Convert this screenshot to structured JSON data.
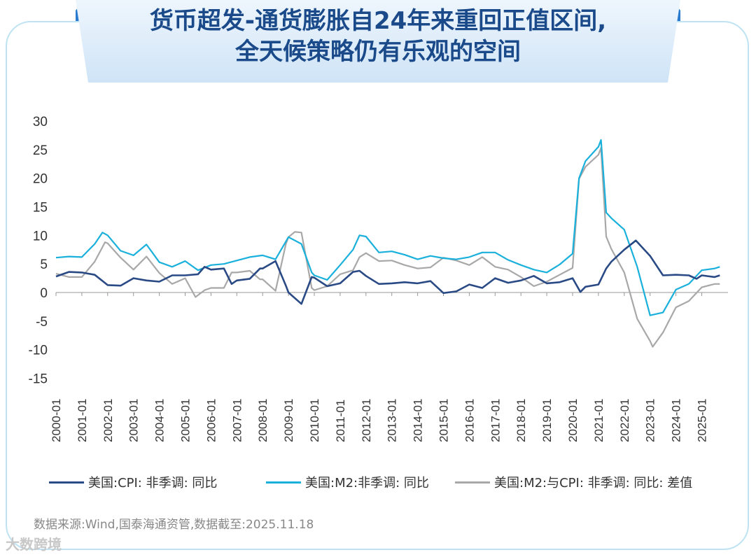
{
  "title_lines": [
    "货币超发-通货膨胀自24年来重回正值区间,",
    "全天候策略仍有乐观的空间"
  ],
  "source": "数据来源:Wind,国泰海通资管,数据截至:2025.11.18",
  "watermark": "大数跨境",
  "colors": {
    "cpi": "#2a4a86",
    "m2": "#1ab0dc",
    "diff": "#a8a8a8",
    "title": "#1a4a8a",
    "banner": "#dcecfa"
  },
  "chart_data": {
    "type": "line",
    "x_ticks": [
      "2000-01",
      "2001-01",
      "2002-01",
      "2003-01",
      "2004-01",
      "2005-01",
      "2006-01",
      "2007-01",
      "2008-01",
      "2009-01",
      "2010-01",
      "2011-01",
      "2012-01",
      "2013-01",
      "2014-01",
      "2015-01",
      "2016-01",
      "2017-01",
      "2018-01",
      "2019-01",
      "2020-01",
      "2021-01",
      "2022-01",
      "2023-01",
      "2024-01",
      "2025-01"
    ],
    "y_ticks": [
      "30",
      "25",
      "20",
      "15",
      "10",
      "5",
      "0",
      "-5",
      "-10",
      "-15"
    ],
    "ylim": [
      -15,
      30
    ],
    "xlim": [
      2000.0,
      2025.8
    ],
    "legend_position": "bottom",
    "series": [
      {
        "name": "美国:CPI: 非季调: 同比",
        "color": "#2a4a86",
        "points": [
          [
            2000.0,
            2.8
          ],
          [
            2000.5,
            3.6
          ],
          [
            2001.0,
            3.5
          ],
          [
            2001.5,
            3.1
          ],
          [
            2002.0,
            1.3
          ],
          [
            2002.5,
            1.2
          ],
          [
            2003.0,
            2.5
          ],
          [
            2003.5,
            2.1
          ],
          [
            2004.0,
            1.9
          ],
          [
            2004.5,
            3.0
          ],
          [
            2005.0,
            3.0
          ],
          [
            2005.5,
            3.2
          ],
          [
            2005.75,
            4.5
          ],
          [
            2006.0,
            4.0
          ],
          [
            2006.5,
            4.2
          ],
          [
            2006.8,
            1.5
          ],
          [
            2007.0,
            2.1
          ],
          [
            2007.5,
            2.4
          ],
          [
            2007.9,
            4.2
          ],
          [
            2008.0,
            4.2
          ],
          [
            2008.5,
            5.5
          ],
          [
            2008.9,
            1.2
          ],
          [
            2009.0,
            0.0
          ],
          [
            2009.5,
            -2.0
          ],
          [
            2009.9,
            2.7
          ],
          [
            2010.0,
            2.6
          ],
          [
            2010.5,
            1.1
          ],
          [
            2011.0,
            1.6
          ],
          [
            2011.5,
            3.6
          ],
          [
            2011.75,
            3.8
          ],
          [
            2012.0,
            2.9
          ],
          [
            2012.5,
            1.5
          ],
          [
            2013.0,
            1.6
          ],
          [
            2013.5,
            1.8
          ],
          [
            2014.0,
            1.6
          ],
          [
            2014.5,
            2.0
          ],
          [
            2015.0,
            -0.1
          ],
          [
            2015.5,
            0.2
          ],
          [
            2016.0,
            1.4
          ],
          [
            2016.5,
            0.8
          ],
          [
            2017.0,
            2.5
          ],
          [
            2017.5,
            1.7
          ],
          [
            2018.0,
            2.1
          ],
          [
            2018.5,
            2.9
          ],
          [
            2019.0,
            1.6
          ],
          [
            2019.5,
            1.8
          ],
          [
            2020.0,
            2.5
          ],
          [
            2020.3,
            0.1
          ],
          [
            2020.5,
            1.0
          ],
          [
            2021.0,
            1.4
          ],
          [
            2021.3,
            4.2
          ],
          [
            2021.5,
            5.4
          ],
          [
            2022.0,
            7.5
          ],
          [
            2022.45,
            9.1
          ],
          [
            2023.0,
            6.4
          ],
          [
            2023.5,
            3.0
          ],
          [
            2024.0,
            3.1
          ],
          [
            2024.5,
            3.0
          ],
          [
            2024.8,
            2.4
          ],
          [
            2025.0,
            3.0
          ],
          [
            2025.5,
            2.7
          ],
          [
            2025.7,
            3.0
          ]
        ]
      },
      {
        "name": "美国:M2:非季调: 同比",
        "color": "#1ab0dc",
        "points": [
          [
            2000.0,
            6.1
          ],
          [
            2000.5,
            6.3
          ],
          [
            2001.0,
            6.2
          ],
          [
            2001.5,
            8.5
          ],
          [
            2001.8,
            10.5
          ],
          [
            2002.0,
            10.0
          ],
          [
            2002.5,
            7.3
          ],
          [
            2003.0,
            6.5
          ],
          [
            2003.5,
            8.4
          ],
          [
            2004.0,
            5.3
          ],
          [
            2004.5,
            4.5
          ],
          [
            2005.0,
            5.5
          ],
          [
            2005.5,
            3.9
          ],
          [
            2006.0,
            4.8
          ],
          [
            2006.5,
            5.0
          ],
          [
            2007.0,
            5.6
          ],
          [
            2007.5,
            6.2
          ],
          [
            2008.0,
            6.5
          ],
          [
            2008.5,
            5.8
          ],
          [
            2009.0,
            9.7
          ],
          [
            2009.5,
            8.5
          ],
          [
            2009.9,
            3.5
          ],
          [
            2010.0,
            3.0
          ],
          [
            2010.5,
            2.2
          ],
          [
            2011.0,
            4.8
          ],
          [
            2011.5,
            7.5
          ],
          [
            2011.75,
            10.0
          ],
          [
            2012.0,
            9.8
          ],
          [
            2012.5,
            7.0
          ],
          [
            2013.0,
            7.2
          ],
          [
            2013.5,
            6.6
          ],
          [
            2014.0,
            5.8
          ],
          [
            2014.5,
            6.4
          ],
          [
            2015.0,
            6.0
          ],
          [
            2015.5,
            5.8
          ],
          [
            2016.0,
            6.2
          ],
          [
            2016.5,
            7.0
          ],
          [
            2017.0,
            7.0
          ],
          [
            2017.5,
            5.7
          ],
          [
            2018.0,
            4.8
          ],
          [
            2018.5,
            4.0
          ],
          [
            2019.0,
            3.5
          ],
          [
            2019.5,
            4.9
          ],
          [
            2020.0,
            6.8
          ],
          [
            2020.25,
            20.0
          ],
          [
            2020.5,
            23.0
          ],
          [
            2021.0,
            25.5
          ],
          [
            2021.1,
            26.7
          ],
          [
            2021.3,
            14.0
          ],
          [
            2021.5,
            13.0
          ],
          [
            2022.0,
            11.0
          ],
          [
            2022.5,
            4.5
          ],
          [
            2023.0,
            -4.0
          ],
          [
            2023.5,
            -3.5
          ],
          [
            2024.0,
            0.5
          ],
          [
            2024.5,
            1.5
          ],
          [
            2025.0,
            3.9
          ],
          [
            2025.5,
            4.2
          ],
          [
            2025.7,
            4.5
          ]
        ]
      },
      {
        "name": "美国:M2:与CPI: 非季调: 同比: 差值",
        "color": "#a8a8a8",
        "points": [
          [
            2000.0,
            3.3
          ],
          [
            2000.5,
            2.7
          ],
          [
            2001.0,
            2.7
          ],
          [
            2001.5,
            5.4
          ],
          [
            2001.9,
            8.8
          ],
          [
            2002.0,
            8.6
          ],
          [
            2002.5,
            6.1
          ],
          [
            2003.0,
            4.0
          ],
          [
            2003.5,
            6.3
          ],
          [
            2004.0,
            3.4
          ],
          [
            2004.5,
            1.5
          ],
          [
            2005.0,
            2.5
          ],
          [
            2005.4,
            -0.8
          ],
          [
            2005.75,
            0.4
          ],
          [
            2006.0,
            0.8
          ],
          [
            2006.5,
            0.8
          ],
          [
            2006.8,
            3.5
          ],
          [
            2007.0,
            3.5
          ],
          [
            2007.5,
            3.8
          ],
          [
            2007.9,
            2.3
          ],
          [
            2008.0,
            2.3
          ],
          [
            2008.5,
            0.3
          ],
          [
            2008.9,
            8.5
          ],
          [
            2009.0,
            9.7
          ],
          [
            2009.25,
            10.6
          ],
          [
            2009.5,
            10.5
          ],
          [
            2009.9,
            0.8
          ],
          [
            2010.0,
            0.4
          ],
          [
            2010.5,
            1.1
          ],
          [
            2011.0,
            3.2
          ],
          [
            2011.5,
            3.9
          ],
          [
            2011.75,
            6.2
          ],
          [
            2012.0,
            6.9
          ],
          [
            2012.5,
            5.5
          ],
          [
            2013.0,
            5.6
          ],
          [
            2013.5,
            4.8
          ],
          [
            2014.0,
            4.2
          ],
          [
            2014.5,
            4.4
          ],
          [
            2015.0,
            6.1
          ],
          [
            2015.5,
            5.6
          ],
          [
            2016.0,
            4.8
          ],
          [
            2016.5,
            6.2
          ],
          [
            2017.0,
            4.5
          ],
          [
            2017.5,
            4.0
          ],
          [
            2018.0,
            2.7
          ],
          [
            2018.5,
            1.1
          ],
          [
            2019.0,
            1.9
          ],
          [
            2019.5,
            3.1
          ],
          [
            2020.0,
            4.3
          ],
          [
            2020.25,
            19.9
          ],
          [
            2020.5,
            22.0
          ],
          [
            2021.0,
            24.1
          ],
          [
            2021.1,
            25.3
          ],
          [
            2021.3,
            9.8
          ],
          [
            2021.5,
            7.6
          ],
          [
            2022.0,
            3.5
          ],
          [
            2022.5,
            -4.6
          ],
          [
            2023.0,
            -8.5
          ],
          [
            2023.1,
            -9.5
          ],
          [
            2023.5,
            -7.0
          ],
          [
            2024.0,
            -2.6
          ],
          [
            2024.5,
            -1.5
          ],
          [
            2025.0,
            0.9
          ],
          [
            2025.5,
            1.5
          ],
          [
            2025.7,
            1.5
          ]
        ]
      }
    ]
  }
}
